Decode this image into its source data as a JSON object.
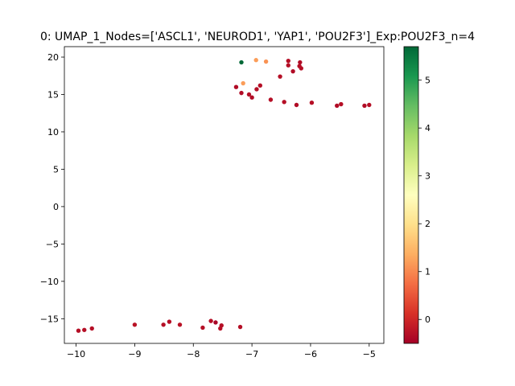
{
  "chart_data": {
    "type": "scatter",
    "title": "0: UMAP_1_Nodes=['ASCL1', 'NEUROD1', 'YAP1', 'POU2F3']_Exp:POU2F3_n=4",
    "xlabel": "",
    "ylabel": "",
    "xlim": [
      -10.2,
      -4.75
    ],
    "ylim": [
      -18.3,
      21.4
    ],
    "xticks": [
      -10,
      -9,
      -8,
      -7,
      -6,
      -5
    ],
    "xtick_labels": [
      "−10",
      "−9",
      "−8",
      "−7",
      "−6",
      "−5"
    ],
    "yticks": [
      -15,
      -10,
      -5,
      0,
      5,
      10,
      15,
      20
    ],
    "ytick_labels": [
      "−15",
      "−10",
      "−5",
      "0",
      "5",
      "10",
      "15",
      "20"
    ],
    "grid": false,
    "colorbar": {
      "cmap": "RdYlGn",
      "range": [
        -0.5,
        5.7
      ],
      "ticks": [
        0,
        1,
        2,
        3,
        4,
        5
      ],
      "tick_labels": [
        "0",
        "1",
        "2",
        "3",
        "4",
        "5"
      ]
    },
    "points": [
      {
        "x": -7.18,
        "y": 19.3,
        "c": 5.7
      },
      {
        "x": -6.93,
        "y": 19.6,
        "c": 1.2
      },
      {
        "x": -6.76,
        "y": 19.4,
        "c": 1.1
      },
      {
        "x": -7.15,
        "y": 16.5,
        "c": 1.2
      },
      {
        "x": -6.38,
        "y": 19.5,
        "c": -0.3
      },
      {
        "x": -6.38,
        "y": 18.9,
        "c": -0.3
      },
      {
        "x": -6.18,
        "y": 19.3,
        "c": -0.35
      },
      {
        "x": -6.19,
        "y": 18.8,
        "c": -0.3
      },
      {
        "x": -6.16,
        "y": 18.5,
        "c": -0.3
      },
      {
        "x": -6.3,
        "y": 18.1,
        "c": -0.35
      },
      {
        "x": -6.52,
        "y": 17.4,
        "c": -0.3
      },
      {
        "x": -7.27,
        "y": 16.0,
        "c": -0.35
      },
      {
        "x": -6.86,
        "y": 16.2,
        "c": -0.3
      },
      {
        "x": -6.92,
        "y": 15.7,
        "c": -0.3
      },
      {
        "x": -7.18,
        "y": 15.2,
        "c": -0.35
      },
      {
        "x": -7.05,
        "y": 15.0,
        "c": -0.3
      },
      {
        "x": -7.0,
        "y": 14.6,
        "c": -0.35
      },
      {
        "x": -6.68,
        "y": 14.3,
        "c": -0.3
      },
      {
        "x": -6.45,
        "y": 14.0,
        "c": -0.3
      },
      {
        "x": -6.24,
        "y": 13.6,
        "c": -0.35
      },
      {
        "x": -5.98,
        "y": 13.9,
        "c": -0.3
      },
      {
        "x": -5.55,
        "y": 13.5,
        "c": -0.35
      },
      {
        "x": -5.48,
        "y": 13.7,
        "c": -0.3
      },
      {
        "x": -5.08,
        "y": 13.5,
        "c": -0.35
      },
      {
        "x": -5.0,
        "y": 13.6,
        "c": -0.3
      },
      {
        "x": -9.96,
        "y": -16.6,
        "c": -0.3
      },
      {
        "x": -9.86,
        "y": -16.5,
        "c": -0.3
      },
      {
        "x": -9.73,
        "y": -16.3,
        "c": -0.3
      },
      {
        "x": -9.0,
        "y": -15.8,
        "c": -0.25
      },
      {
        "x": -8.51,
        "y": -15.8,
        "c": -0.3
      },
      {
        "x": -8.41,
        "y": -15.4,
        "c": -0.3
      },
      {
        "x": -8.23,
        "y": -15.8,
        "c": -0.25
      },
      {
        "x": -7.84,
        "y": -16.2,
        "c": -0.3
      },
      {
        "x": -7.7,
        "y": -15.3,
        "c": -0.3
      },
      {
        "x": -7.62,
        "y": -15.5,
        "c": -0.45
      },
      {
        "x": -7.52,
        "y": -15.9,
        "c": -0.3
      },
      {
        "x": -7.54,
        "y": -16.3,
        "c": -0.3
      },
      {
        "x": -7.2,
        "y": -16.1,
        "c": -0.3
      }
    ]
  }
}
